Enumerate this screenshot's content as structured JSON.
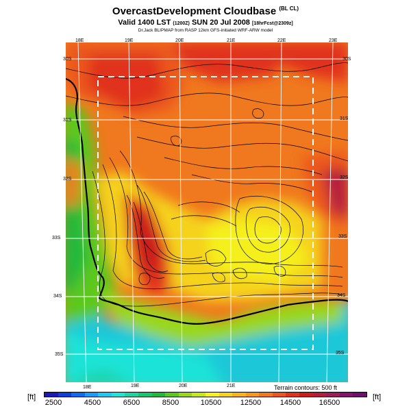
{
  "title": {
    "main": "OvercastDevelopment Cloudbase",
    "main_suffix": "(BL CL)",
    "valid_prefix": "Valid 1400 LST",
    "valid_code": "(1200Z)",
    "valid_date": "SUN 20 Jul 2008",
    "valid_suffix": "[18hrFcst@2309z]",
    "credit": "Dr.Jack BLIPMAP from RASP 12km GFS-initiated WRF-ARW model"
  },
  "map": {
    "top_lon_labels": [
      "18E",
      "19E",
      "20E",
      "21E",
      "22E",
      "23E"
    ],
    "bottom_lon_labels": [
      "18E",
      "19E",
      "20E",
      "21E"
    ],
    "left_lat_labels": [
      "30S",
      "31S",
      "32S",
      "33S",
      "34S",
      "35S"
    ],
    "right_lat_labels": [
      "30S",
      "31S",
      "32S",
      "33S",
      "34S",
      "35S"
    ],
    "terrain_note": "Terrain contours: 500 ft"
  },
  "colorbar": {
    "unit_left": "[ft]",
    "unit_right": "[ft]",
    "tick_labels": [
      "2500",
      "4500",
      "6500",
      "8500",
      "10500",
      "12500",
      "14500",
      "16500"
    ],
    "colors": [
      "#1c1ab4",
      "#0f3fd9",
      "#0f6cf0",
      "#1a9bf5",
      "#1ec8f0",
      "#1ee3d7",
      "#1ed2a5",
      "#19c46e",
      "#22b93a",
      "#5cc81e",
      "#99d71a",
      "#c9e51e",
      "#f5f01e",
      "#f5d21e",
      "#f5b41e",
      "#f5961e",
      "#f0781e",
      "#eb561e",
      "#e0321e",
      "#c81e1e",
      "#b41e3c",
      "#9b1e5a",
      "#82146e",
      "#6e0f6e"
    ],
    "scale": "overcast cloudbase height"
  }
}
